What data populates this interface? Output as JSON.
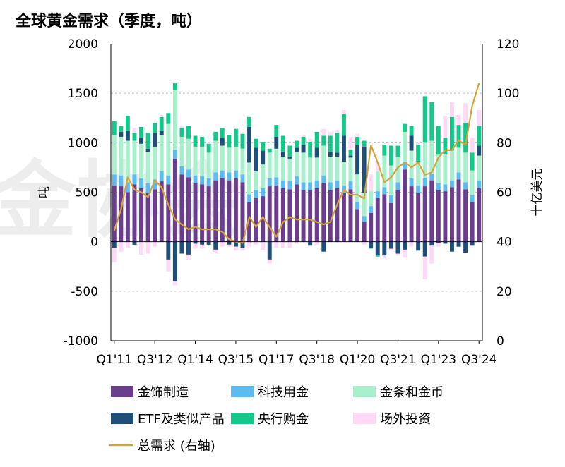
{
  "chart_data": {
    "type": "bar",
    "stacked": true,
    "title": "全球黄金需求（季度，吨）",
    "ylabel_left": "吨",
    "ylabel_right": "十亿美元",
    "ylim_left": [
      -1000,
      2000
    ],
    "ylim_right": [
      0,
      120
    ],
    "yticks_left": [
      "-1000",
      "-500",
      "0",
      "500",
      "1000",
      "1500",
      "2000"
    ],
    "yticks_right": [
      "0",
      "20",
      "40",
      "60",
      "80",
      "100",
      "120"
    ],
    "x_tick_labels": [
      "Q1'11",
      "Q3'12",
      "Q1'14",
      "Q3'15",
      "Q1'17",
      "Q3'18",
      "Q1'20",
      "Q3'21",
      "Q1'23",
      "Q3'24"
    ],
    "x_tick_index": [
      0,
      6,
      12,
      18,
      24,
      30,
      36,
      42,
      48,
      54
    ],
    "grid": "horizontal dashed",
    "watermark": "金协会",
    "categories": [
      "Q1'11",
      "Q2'11",
      "Q3'11",
      "Q4'11",
      "Q1'12",
      "Q2'12",
      "Q3'12",
      "Q4'12",
      "Q1'13",
      "Q2'13",
      "Q3'13",
      "Q4'13",
      "Q1'14",
      "Q2'14",
      "Q3'14",
      "Q4'14",
      "Q1'15",
      "Q2'15",
      "Q3'15",
      "Q4'15",
      "Q1'16",
      "Q2'16",
      "Q3'16",
      "Q4'16",
      "Q1'17",
      "Q2'17",
      "Q3'17",
      "Q4'17",
      "Q1'18",
      "Q2'18",
      "Q3'18",
      "Q4'18",
      "Q1'19",
      "Q2'19",
      "Q3'19",
      "Q4'19",
      "Q1'20",
      "Q2'20",
      "Q3'20",
      "Q4'20",
      "Q1'21",
      "Q2'21",
      "Q3'21",
      "Q4'21",
      "Q1'22",
      "Q2'22",
      "Q3'22",
      "Q4'22",
      "Q1'23",
      "Q2'23",
      "Q3'23",
      "Q4'23",
      "Q1'24",
      "Q2'24",
      "Q3'24"
    ],
    "series": [
      {
        "name": "金饰制造",
        "color": "#6a3d8f",
        "kind": "bar",
        "values": [
          570,
          560,
          500,
          580,
          540,
          490,
          530,
          610,
          580,
          840,
          680,
          650,
          590,
          580,
          560,
          620,
          640,
          620,
          640,
          600,
          400,
          440,
          460,
          560,
          570,
          540,
          530,
          580,
          520,
          520,
          540,
          590,
          520,
          540,
          490,
          530,
          330,
          200,
          290,
          440,
          480,
          390,
          520,
          730,
          560,
          490,
          560,
          620,
          520,
          510,
          550,
          630,
          530,
          400,
          540
        ]
      },
      {
        "name": "科技用金",
        "color": "#5bbcf2",
        "kind": "bar",
        "values": [
          110,
          110,
          100,
          100,
          100,
          100,
          100,
          100,
          90,
          90,
          80,
          80,
          80,
          80,
          80,
          80,
          80,
          80,
          80,
          80,
          80,
          80,
          80,
          80,
          80,
          80,
          80,
          80,
          80,
          80,
          80,
          80,
          80,
          80,
          80,
          80,
          70,
          60,
          70,
          70,
          70,
          80,
          80,
          80,
          80,
          80,
          80,
          70,
          70,
          70,
          70,
          70,
          70,
          70,
          80
        ]
      },
      {
        "name": "金条和金币",
        "color": "#a8f0cc",
        "kind": "bar",
        "values": [
          400,
          390,
          420,
          340,
          350,
          320,
          330,
          370,
          520,
          600,
          300,
          310,
          290,
          300,
          260,
          320,
          250,
          250,
          240,
          260,
          320,
          190,
          240,
          260,
          290,
          240,
          230,
          250,
          300,
          250,
          230,
          300,
          260,
          240,
          240,
          240,
          280,
          230,
          150,
          200,
          320,
          300,
          260,
          300,
          280,
          240,
          360,
          330,
          290,
          300,
          300,
          250,
          300,
          250,
          250
        ]
      },
      {
        "name": "ETF及类似产品",
        "color": "#1f4e79",
        "kind": "bar",
        "values": [
          -60,
          50,
          100,
          -30,
          60,
          30,
          140,
          40,
          -180,
          -400,
          -120,
          -130,
          -20,
          -30,
          -30,
          -80,
          80,
          -30,
          -50,
          -60,
          360,
          240,
          140,
          -180,
          120,
          50,
          20,
          40,
          80,
          -40,
          100,
          -100,
          50,
          40,
          260,
          20,
          300,
          470,
          -60,
          -140,
          -140,
          -70,
          -120,
          -80,
          150,
          -90,
          -150,
          -40,
          -10,
          -20,
          -100,
          -50,
          -110,
          -40,
          100
        ]
      },
      {
        "name": "央行购金",
        "color": "#12c98a",
        "kind": "bar",
        "values": [
          140,
          60,
          150,
          80,
          110,
          160,
          100,
          140,
          110,
          70,
          90,
          130,
          110,
          100,
          90,
          90,
          100,
          130,
          180,
          150,
          100,
          90,
          90,
          40,
          120,
          160,
          110,
          70,
          80,
          160,
          160,
          100,
          160,
          200,
          220,
          60,
          80,
          60,
          -10,
          -10,
          110,
          200,
          110,
          80,
          100,
          170,
          470,
          390,
          290,
          170,
          340,
          230,
          300,
          180,
          200
        ]
      },
      {
        "name": "场外投资",
        "color": "#ffd9f5",
        "kind": "bar",
        "values": [
          -150,
          -100,
          -60,
          50,
          -130,
          -120,
          -50,
          20,
          -120,
          -40,
          20,
          -50,
          -50,
          -40,
          10,
          -40,
          -50,
          -20,
          -40,
          -30,
          -50,
          -30,
          -80,
          -40,
          -60,
          -60,
          -60,
          -20,
          20,
          30,
          -30,
          70,
          40,
          30,
          40,
          130,
          30,
          -30,
          170,
          90,
          -30,
          -20,
          -20,
          -80,
          -50,
          20,
          -230,
          -180,
          -40,
          220,
          150,
          100,
          200,
          150,
          160
        ]
      },
      {
        "name": "总需求 (右轴)",
        "color": "#d4a43c",
        "kind": "line",
        "axis": "right",
        "values": [
          44.5,
          53,
          66,
          61,
          60,
          58,
          65,
          62,
          55,
          49,
          47,
          45,
          46,
          45,
          45,
          45,
          44,
          41,
          40,
          39.5,
          50,
          46,
          50,
          46,
          42,
          48,
          50,
          49,
          49,
          49,
          48,
          47,
          48,
          55,
          61,
          59,
          59,
          57.5,
          79,
          72,
          64,
          66,
          70,
          72,
          70,
          72,
          67,
          68,
          74,
          77,
          77,
          81,
          79,
          95,
          104
        ]
      }
    ]
  }
}
